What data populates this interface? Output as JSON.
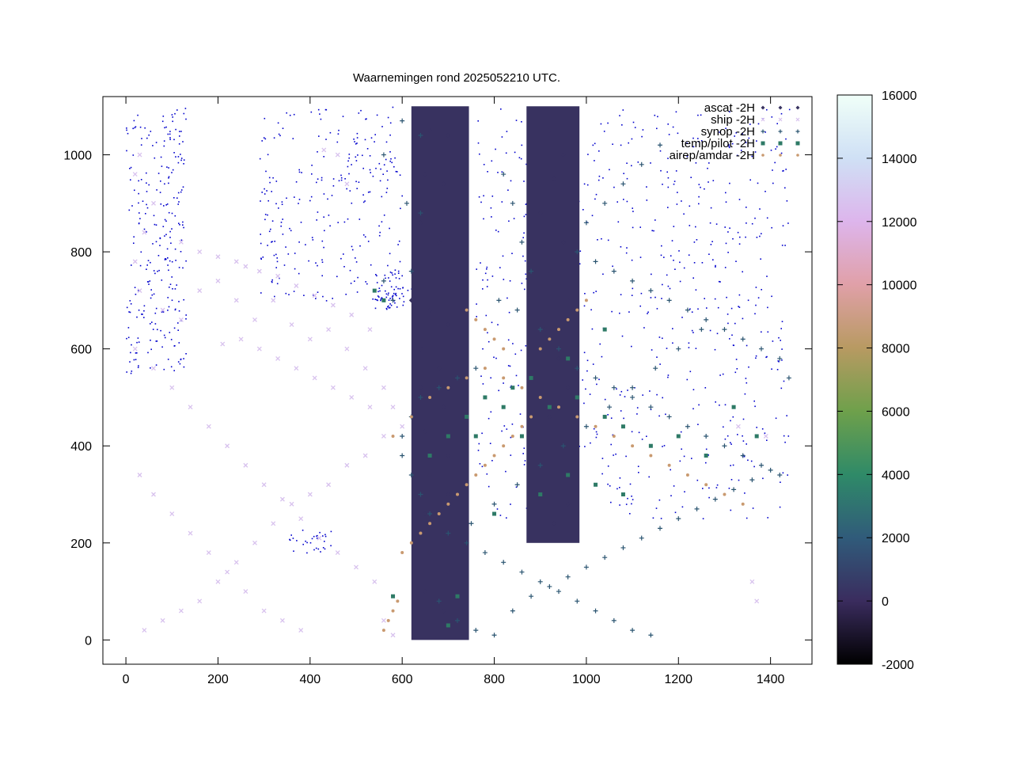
{
  "chart_data": {
    "type": "scatter",
    "title": "Waarnemingen rond 2025052210 UTC.",
    "xlabel": "",
    "ylabel": "",
    "xlim": [
      -50,
      1490
    ],
    "ylim": [
      -50,
      1120
    ],
    "xticks": [
      0,
      200,
      400,
      600,
      800,
      1000,
      1200,
      1400
    ],
    "yticks": [
      0,
      200,
      400,
      600,
      800,
      1000
    ],
    "grid": false,
    "legend_position": "top-right",
    "colorbar": {
      "min": -2000,
      "max": 16000,
      "ticks": [
        -2000,
        0,
        2000,
        4000,
        6000,
        8000,
        10000,
        12000,
        14000,
        16000
      ],
      "colors": [
        "#000000",
        "#3a2c5e",
        "#305b7a",
        "#2f8a68",
        "#6ea04b",
        "#b89a62",
        "#e0a0a8",
        "#ddb5ec",
        "#cfe0f5",
        "#f0fff8"
      ]
    },
    "coastline_color": "#0000cc",
    "series": [
      {
        "name": "ascat -2H",
        "marker": "diamond",
        "color": "#383260",
        "swaths": [
          {
            "x0": 620,
            "x1": 745,
            "y0": 1100,
            "y1": 0
          },
          {
            "x0": 870,
            "x1": 985,
            "y0": 1100,
            "y1": 200
          }
        ],
        "points": [
          [
            660,
            1050
          ],
          [
            700,
            1040
          ],
          [
            650,
            960
          ],
          [
            690,
            940
          ],
          [
            640,
            860
          ],
          [
            680,
            820
          ],
          [
            620,
            700
          ],
          [
            660,
            680
          ],
          [
            700,
            650
          ],
          [
            640,
            600
          ],
          [
            680,
            560
          ],
          [
            640,
            520
          ],
          [
            690,
            480
          ],
          [
            650,
            430
          ],
          [
            700,
            380
          ],
          [
            660,
            340
          ],
          [
            700,
            300
          ],
          [
            650,
            260
          ],
          [
            690,
            220
          ],
          [
            660,
            180
          ],
          [
            700,
            140
          ],
          [
            650,
            100
          ],
          [
            690,
            60
          ],
          [
            920,
            1050
          ],
          [
            950,
            1000
          ],
          [
            930,
            950
          ],
          [
            900,
            880
          ],
          [
            950,
            820
          ],
          [
            920,
            760
          ],
          [
            960,
            700
          ],
          [
            910,
            640
          ],
          [
            940,
            580
          ],
          [
            960,
            520
          ],
          [
            920,
            460
          ],
          [
            950,
            400
          ],
          [
            910,
            340
          ],
          [
            960,
            280
          ],
          [
            930,
            240
          ]
        ]
      },
      {
        "name": "ship -2H",
        "marker": "x",
        "color": "#d8c2ee",
        "points": [
          [
            30,
            1000
          ],
          [
            20,
            960
          ],
          [
            60,
            900
          ],
          [
            40,
            840
          ],
          [
            20,
            780
          ],
          [
            30,
            720
          ],
          [
            80,
            680
          ],
          [
            120,
            660
          ],
          [
            160,
            720
          ],
          [
            200,
            740
          ],
          [
            240,
            700
          ],
          [
            280,
            660
          ],
          [
            320,
            700
          ],
          [
            360,
            650
          ],
          [
            400,
            620
          ],
          [
            440,
            640
          ],
          [
            480,
            600
          ],
          [
            520,
            560
          ],
          [
            560,
            520
          ],
          [
            580,
            480
          ],
          [
            600,
            440
          ],
          [
            560,
            420
          ],
          [
            520,
            380
          ],
          [
            480,
            360
          ],
          [
            440,
            320
          ],
          [
            400,
            300
          ],
          [
            360,
            280
          ],
          [
            320,
            240
          ],
          [
            280,
            200
          ],
          [
            240,
            160
          ],
          [
            200,
            120
          ],
          [
            160,
            80
          ],
          [
            120,
            60
          ],
          [
            80,
            40
          ],
          [
            40,
            20
          ],
          [
            30,
            340
          ],
          [
            60,
            300
          ],
          [
            100,
            260
          ],
          [
            140,
            220
          ],
          [
            180,
            180
          ],
          [
            220,
            140
          ],
          [
            260,
            100
          ],
          [
            300,
            60
          ],
          [
            340,
            40
          ],
          [
            380,
            20
          ],
          [
            20,
            600
          ],
          [
            60,
            560
          ],
          [
            100,
            520
          ],
          [
            140,
            480
          ],
          [
            180,
            440
          ],
          [
            220,
            400
          ],
          [
            260,
            360
          ],
          [
            300,
            320
          ],
          [
            340,
            290
          ],
          [
            380,
            250
          ],
          [
            420,
            210
          ],
          [
            460,
            180
          ],
          [
            500,
            150
          ],
          [
            540,
            120
          ],
          [
            560,
            40
          ],
          [
            580,
            10
          ],
          [
            460,
            1000
          ],
          [
            430,
            1010
          ],
          [
            480,
            940
          ],
          [
            120,
            820
          ],
          [
            160,
            800
          ],
          [
            200,
            790
          ],
          [
            240,
            780
          ],
          [
            260,
            770
          ],
          [
            290,
            760
          ],
          [
            330,
            750
          ],
          [
            370,
            730
          ],
          [
            410,
            710
          ],
          [
            450,
            690
          ],
          [
            490,
            670
          ],
          [
            530,
            640
          ],
          [
            210,
            610
          ],
          [
            250,
            620
          ],
          [
            290,
            600
          ],
          [
            330,
            580
          ],
          [
            370,
            560
          ],
          [
            410,
            540
          ],
          [
            450,
            520
          ],
          [
            490,
            500
          ],
          [
            530,
            480
          ],
          [
            1360,
            120
          ],
          [
            1370,
            80
          ],
          [
            1390,
            420
          ],
          [
            1330,
            440
          ]
        ]
      },
      {
        "name": "synop -2H",
        "marker": "plus",
        "color": "#2a5470",
        "points": [
          [
            600,
            1070
          ],
          [
            640,
            1040
          ],
          [
            560,
            1000
          ],
          [
            610,
            900
          ],
          [
            640,
            880
          ],
          [
            620,
            760
          ],
          [
            560,
            740
          ],
          [
            580,
            700
          ],
          [
            820,
            960
          ],
          [
            840,
            900
          ],
          [
            860,
            820
          ],
          [
            880,
            760
          ],
          [
            810,
            700
          ],
          [
            850,
            680
          ],
          [
            900,
            640
          ],
          [
            940,
            600
          ],
          [
            980,
            560
          ],
          [
            1020,
            540
          ],
          [
            1060,
            520
          ],
          [
            1100,
            500
          ],
          [
            1140,
            480
          ],
          [
            1180,
            460
          ],
          [
            1220,
            440
          ],
          [
            1260,
            420
          ],
          [
            1300,
            400
          ],
          [
            1340,
            380
          ],
          [
            1380,
            360
          ],
          [
            1420,
            340
          ],
          [
            760,
            560
          ],
          [
            720,
            540
          ],
          [
            680,
            520
          ],
          [
            640,
            500
          ],
          [
            620,
            460
          ],
          [
            600,
            420
          ],
          [
            600,
            380
          ],
          [
            620,
            340
          ],
          [
            640,
            300
          ],
          [
            660,
            260
          ],
          [
            700,
            220
          ],
          [
            740,
            200
          ],
          [
            780,
            180
          ],
          [
            820,
            160
          ],
          [
            860,
            140
          ],
          [
            900,
            120
          ],
          [
            940,
            100
          ],
          [
            980,
            80
          ],
          [
            1020,
            60
          ],
          [
            1060,
            40
          ],
          [
            1100,
            20
          ],
          [
            1140,
            10
          ],
          [
            680,
            80
          ],
          [
            720,
            40
          ],
          [
            760,
            20
          ],
          [
            800,
            10
          ],
          [
            840,
            60
          ],
          [
            880,
            90
          ],
          [
            920,
            110
          ],
          [
            960,
            130
          ],
          [
            1000,
            150
          ],
          [
            1040,
            170
          ],
          [
            1080,
            190
          ],
          [
            1120,
            210
          ],
          [
            1160,
            230
          ],
          [
            1200,
            250
          ],
          [
            1240,
            270
          ],
          [
            1280,
            290
          ],
          [
            1320,
            310
          ],
          [
            1360,
            330
          ],
          [
            1400,
            350
          ],
          [
            1440,
            540
          ],
          [
            1420,
            580
          ],
          [
            1380,
            600
          ],
          [
            1340,
            620
          ],
          [
            1300,
            640
          ],
          [
            1260,
            660
          ],
          [
            1220,
            680
          ],
          [
            1180,
            700
          ],
          [
            1140,
            720
          ],
          [
            1100,
            740
          ],
          [
            1060,
            760
          ],
          [
            1020,
            780
          ],
          [
            980,
            800
          ],
          [
            1000,
            860
          ],
          [
            1040,
            900
          ],
          [
            1080,
            940
          ],
          [
            1120,
            980
          ],
          [
            1160,
            1020
          ],
          [
            1250,
            640
          ],
          [
            1200,
            600
          ],
          [
            1150,
            560
          ],
          [
            1100,
            520
          ],
          [
            1050,
            480
          ],
          [
            1000,
            440
          ],
          [
            950,
            400
          ],
          [
            900,
            360
          ],
          [
            850,
            320
          ],
          [
            800,
            280
          ],
          [
            750,
            240
          ]
        ]
      },
      {
        "name": "temp/pilot -2H",
        "marker": "square",
        "color": "#2e7a66",
        "points": [
          [
            580,
            90
          ],
          [
            700,
            30
          ],
          [
            720,
            90
          ],
          [
            800,
            260
          ],
          [
            860,
            420
          ],
          [
            920,
            480
          ],
          [
            980,
            500
          ],
          [
            1040,
            460
          ],
          [
            1080,
            440
          ],
          [
            1140,
            400
          ],
          [
            1200,
            420
          ],
          [
            1260,
            380
          ],
          [
            1320,
            480
          ],
          [
            1370,
            420
          ],
          [
            840,
            520
          ],
          [
            780,
            500
          ],
          [
            740,
            460
          ],
          [
            700,
            420
          ],
          [
            660,
            380
          ],
          [
            900,
            300
          ],
          [
            960,
            340
          ],
          [
            1020,
            320
          ],
          [
            1080,
            300
          ],
          [
            540,
            720
          ],
          [
            560,
            700
          ],
          [
            1040,
            640
          ],
          [
            960,
            580
          ],
          [
            880,
            540
          ],
          [
            820,
            480
          ],
          [
            760,
            420
          ]
        ]
      },
      {
        "name": "airep/amdar -2H",
        "marker": "dot",
        "color": "#c99a70",
        "points": [
          [
            580,
            420
          ],
          [
            620,
            460
          ],
          [
            660,
            500
          ],
          [
            700,
            520
          ],
          [
            740,
            540
          ],
          [
            780,
            560
          ],
          [
            820,
            540
          ],
          [
            860,
            520
          ],
          [
            900,
            500
          ],
          [
            940,
            480
          ],
          [
            980,
            460
          ],
          [
            1020,
            440
          ],
          [
            1060,
            420
          ],
          [
            1100,
            400
          ],
          [
            1140,
            380
          ],
          [
            1180,
            360
          ],
          [
            1220,
            340
          ],
          [
            1260,
            320
          ],
          [
            1300,
            300
          ],
          [
            1340,
            280
          ],
          [
            880,
            460
          ],
          [
            860,
            440
          ],
          [
            840,
            420
          ],
          [
            820,
            400
          ],
          [
            800,
            380
          ],
          [
            780,
            360
          ],
          [
            760,
            340
          ],
          [
            740,
            320
          ],
          [
            720,
            300
          ],
          [
            700,
            280
          ],
          [
            680,
            260
          ],
          [
            660,
            240
          ],
          [
            640,
            220
          ],
          [
            620,
            200
          ],
          [
            600,
            180
          ],
          [
            590,
            80
          ],
          [
            580,
            60
          ],
          [
            570,
            40
          ],
          [
            560,
            20
          ],
          [
            900,
            600
          ],
          [
            920,
            620
          ],
          [
            940,
            640
          ],
          [
            960,
            660
          ],
          [
            980,
            680
          ],
          [
            1000,
            700
          ],
          [
            820,
            600
          ],
          [
            800,
            620
          ],
          [
            780,
            640
          ],
          [
            760,
            660
          ],
          [
            740,
            680
          ]
        ]
      }
    ]
  }
}
